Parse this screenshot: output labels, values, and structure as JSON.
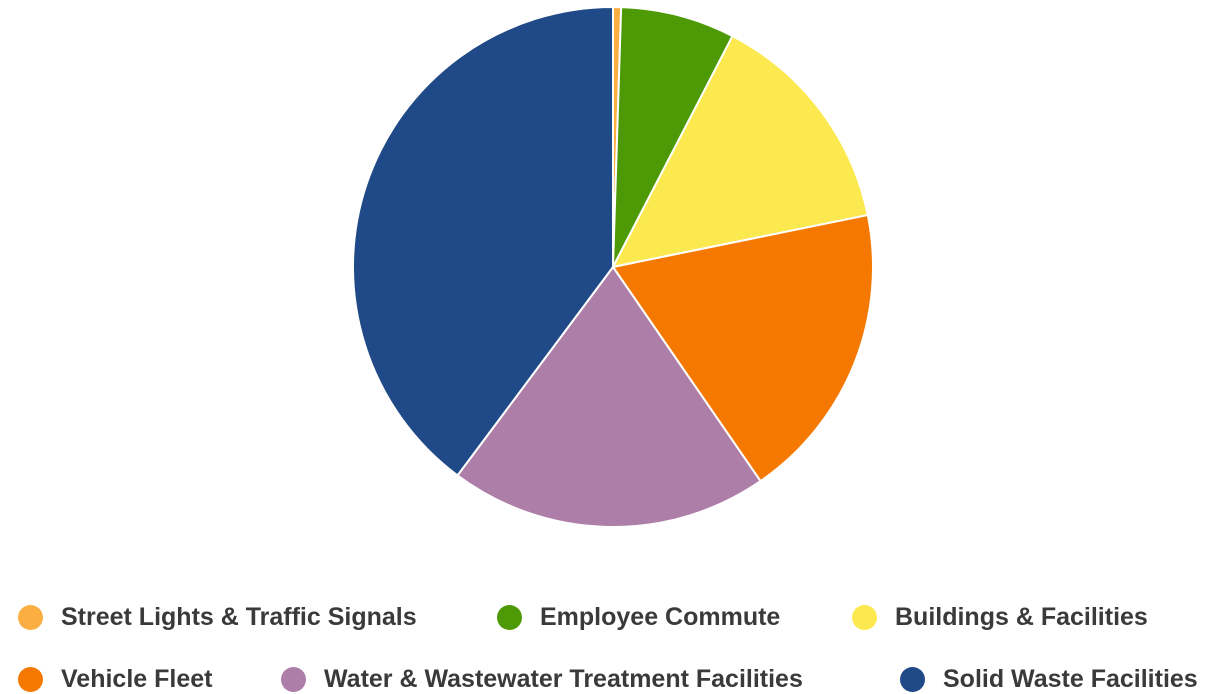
{
  "chart_data": {
    "type": "pie",
    "title": "",
    "slices": [
      {
        "label": "Street Lights & Traffic Signals",
        "value": 0.5,
        "color": "#fbae42"
      },
      {
        "label": "Employee Commute",
        "value": 7.1,
        "color": "#4e9a06"
      },
      {
        "label": "Buildings & Facilities",
        "value": 14.2,
        "color": "#fce94f"
      },
      {
        "label": "Vehicle Fleet",
        "value": 18.6,
        "color": "#f57900"
      },
      {
        "label": "Water & Wastewater Treatment Facilities",
        "value": 19.8,
        "color": "#ad7fa8"
      },
      {
        "label": "Solid Waste Facilities",
        "value": 39.8,
        "color": "#204a87"
      }
    ],
    "legend_position": "bottom",
    "start_angle": "top, clockwise"
  }
}
